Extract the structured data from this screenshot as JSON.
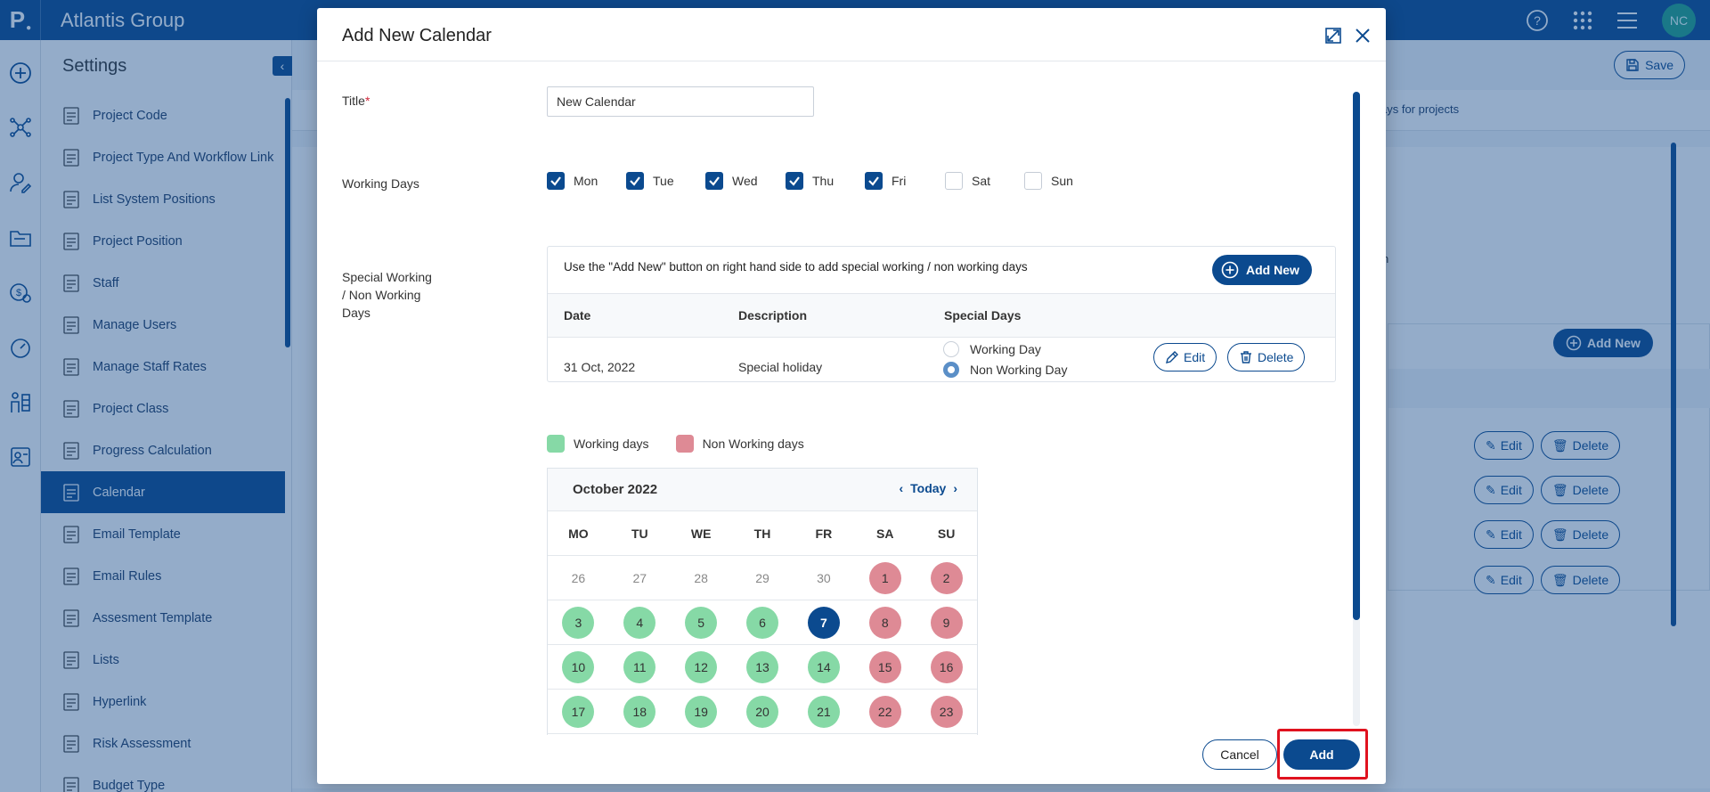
{
  "app": {
    "logo": "P",
    "title": "Atlantis Group",
    "avatar": "NC"
  },
  "sidebar": {
    "title": "Settings",
    "items": [
      {
        "label": "Project Code",
        "icon": "code-badge-icon"
      },
      {
        "label": "Project Type And Workflow Link",
        "icon": "building-icon"
      },
      {
        "label": "List System Positions",
        "icon": "monitor-user-icon"
      },
      {
        "label": "Project Position",
        "icon": "org-position-icon"
      },
      {
        "label": "Staff",
        "icon": "hierarchy-icon"
      },
      {
        "label": "Manage Users",
        "icon": "user-gear-icon"
      },
      {
        "label": "Manage Staff Rates",
        "icon": "dollar-clock-icon"
      },
      {
        "label": "Project Class",
        "icon": "presentation-icon"
      },
      {
        "label": "Progress Calculation",
        "icon": "bar-growth-icon"
      },
      {
        "label": "Calendar",
        "icon": "calendar-icon",
        "active": true
      },
      {
        "label": "Email Template",
        "icon": "email-template-icon"
      },
      {
        "label": "Email Rules",
        "icon": "email-rules-icon"
      },
      {
        "label": "Assesment Template",
        "icon": "assessment-icon"
      },
      {
        "label": "Lists",
        "icon": "list-icon"
      },
      {
        "label": "Hyperlink",
        "icon": "globe-icon"
      },
      {
        "label": "Risk Assessment",
        "icon": "risk-icon"
      },
      {
        "label": "Budget Type",
        "icon": "budget-icon"
      }
    ]
  },
  "background": {
    "save_label": "Save",
    "subbar_text": "ays for projects",
    "note_text": "n",
    "add_new_label": "Add New",
    "edit_label": "Edit",
    "delete_label": "Delete"
  },
  "modal": {
    "title": "Add New Calendar",
    "title_label": "Title",
    "required_mark": "*",
    "title_value": "New Calendar",
    "working_days_label": "Working Days",
    "days": [
      {
        "label": "Mon",
        "checked": true
      },
      {
        "label": "Tue",
        "checked": true
      },
      {
        "label": "Wed",
        "checked": true
      },
      {
        "label": "Thu",
        "checked": true
      },
      {
        "label": "Fri",
        "checked": true
      },
      {
        "label": "Sat",
        "checked": false
      },
      {
        "label": "Sun",
        "checked": false
      }
    ],
    "special_label_1": "Special Working",
    "special_label_2": "/ Non Working",
    "special_label_3": "Days",
    "special": {
      "hint": "Use the \"Add New\" button on right hand side to add special working / non working days",
      "add_new_label": "Add New",
      "columns": [
        "Date",
        "Description",
        "Special Days"
      ],
      "rows": [
        {
          "date": "31 Oct, 2022",
          "description": "Special holiday",
          "option_working": "Working Day",
          "option_non_working": "Non Working Day",
          "selected": "non_working",
          "edit_label": "Edit",
          "delete_label": "Delete"
        }
      ]
    },
    "legend": {
      "working": "Working days",
      "non_working": "Non Working days",
      "working_color": "#86d9a6",
      "non_working_color": "#de8a95"
    },
    "calendar": {
      "month": "October 2022",
      "today_label": "Today",
      "dows": [
        "MO",
        "TU",
        "WE",
        "TH",
        "FR",
        "SA",
        "SU"
      ],
      "weeks": [
        [
          {
            "d": "26",
            "t": "other"
          },
          {
            "d": "27",
            "t": "other"
          },
          {
            "d": "28",
            "t": "other"
          },
          {
            "d": "29",
            "t": "other"
          },
          {
            "d": "30",
            "t": "other"
          },
          {
            "d": "1",
            "t": "nonwork"
          },
          {
            "d": "2",
            "t": "nonwork"
          }
        ],
        [
          {
            "d": "3",
            "t": "work"
          },
          {
            "d": "4",
            "t": "work"
          },
          {
            "d": "5",
            "t": "work"
          },
          {
            "d": "6",
            "t": "work"
          },
          {
            "d": "7",
            "t": "today"
          },
          {
            "d": "8",
            "t": "nonwork"
          },
          {
            "d": "9",
            "t": "nonwork"
          }
        ],
        [
          {
            "d": "10",
            "t": "work"
          },
          {
            "d": "11",
            "t": "work"
          },
          {
            "d": "12",
            "t": "work"
          },
          {
            "d": "13",
            "t": "work"
          },
          {
            "d": "14",
            "t": "work"
          },
          {
            "d": "15",
            "t": "nonwork"
          },
          {
            "d": "16",
            "t": "nonwork"
          }
        ],
        [
          {
            "d": "17",
            "t": "work"
          },
          {
            "d": "18",
            "t": "work"
          },
          {
            "d": "19",
            "t": "work"
          },
          {
            "d": "20",
            "t": "work"
          },
          {
            "d": "21",
            "t": "work"
          },
          {
            "d": "22",
            "t": "nonwork"
          },
          {
            "d": "23",
            "t": "nonwork"
          }
        ]
      ]
    },
    "cancel_label": "Cancel",
    "add_label": "Add"
  }
}
